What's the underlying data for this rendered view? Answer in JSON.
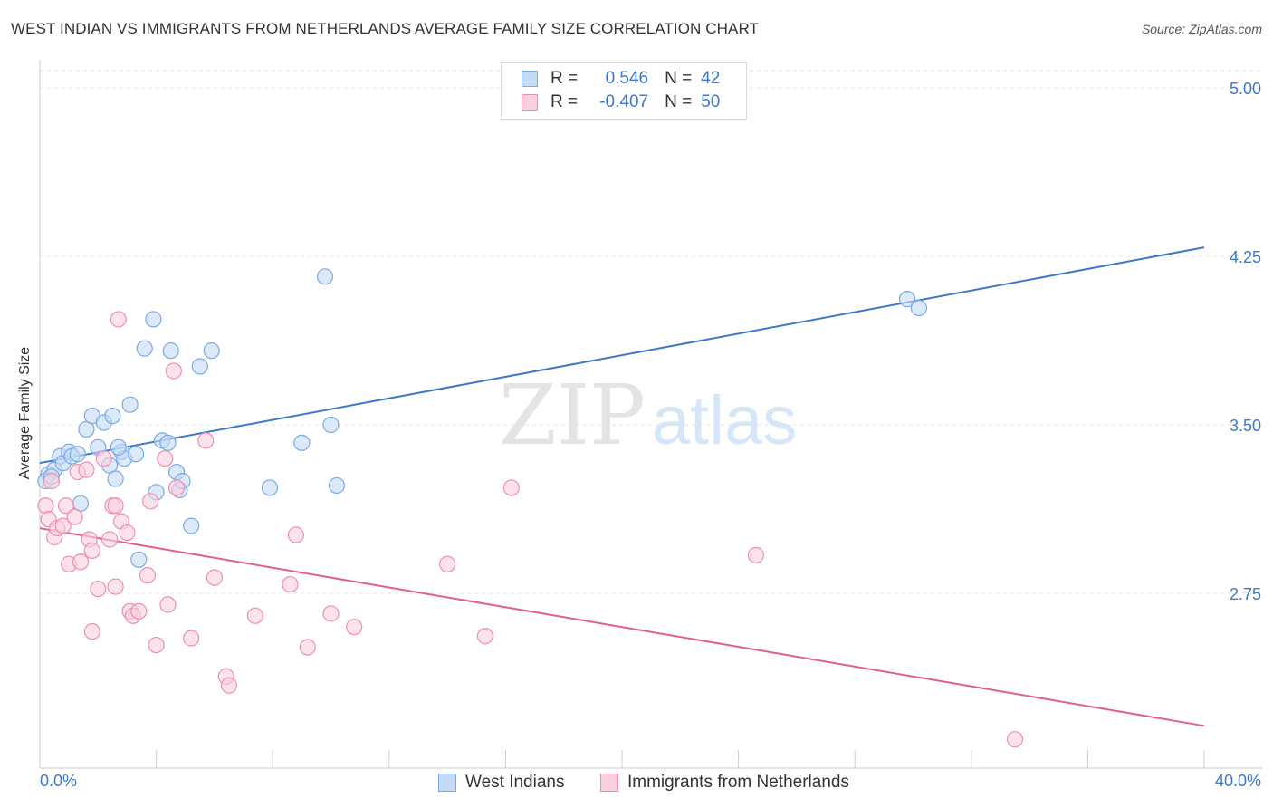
{
  "title": "WEST INDIAN VS IMMIGRANTS FROM NETHERLANDS AVERAGE FAMILY SIZE CORRELATION CHART",
  "source": "Source: ZipAtlas.com",
  "watermark": {
    "zip": "ZIP",
    "atlas": "atlas"
  },
  "legend_stats": [
    {
      "r_label": "R =",
      "r_value": "0.546",
      "n_label": "N =",
      "n_value": "42",
      "color": "#7aaae6",
      "fill": "#c5dbf5"
    },
    {
      "r_label": "R =",
      "r_value": "-0.407",
      "n_label": "N =",
      "n_value": "50",
      "color": "#ee8faf",
      "fill": "#fad0de"
    }
  ],
  "x_axis": {
    "min_label": "0.0%",
    "max_label": "40.0%"
  },
  "chart_data": {
    "type": "scatter",
    "title": "WEST INDIAN VS IMMIGRANTS FROM NETHERLANDS AVERAGE FAMILY SIZE CORRELATION CHART",
    "xlabel": "",
    "ylabel": "Average Family Size",
    "xlim": [
      0,
      40
    ],
    "ylim": [
      2.0,
      5.08
    ],
    "y_ticks": [
      2.75,
      3.5,
      4.25,
      5.0
    ],
    "y_tick_labels": [
      "2.75",
      "3.50",
      "4.25",
      "5.00"
    ],
    "grid": "horizontal dashed",
    "legend_position": "bottom",
    "series": [
      {
        "name": "West Indians",
        "color": "#3c78c8",
        "marker_fill": "#c5dbf5",
        "marker_edge": "#7aaae6",
        "points": [
          [
            0.3,
            3.28
          ],
          [
            0.5,
            3.3
          ],
          [
            0.7,
            3.36
          ],
          [
            0.8,
            3.33
          ],
          [
            1.0,
            3.38
          ],
          [
            1.1,
            3.36
          ],
          [
            1.3,
            3.37
          ],
          [
            1.4,
            3.15
          ],
          [
            1.6,
            3.48
          ],
          [
            1.8,
            3.54
          ],
          [
            2.0,
            3.4
          ],
          [
            2.2,
            3.51
          ],
          [
            2.4,
            3.32
          ],
          [
            2.5,
            3.54
          ],
          [
            2.6,
            3.26
          ],
          [
            2.8,
            3.38
          ],
          [
            2.9,
            3.35
          ],
          [
            3.1,
            3.59
          ],
          [
            3.3,
            3.37
          ],
          [
            3.4,
            2.9
          ],
          [
            3.6,
            3.84
          ],
          [
            3.9,
            3.97
          ],
          [
            4.0,
            3.2
          ],
          [
            4.2,
            3.43
          ],
          [
            4.4,
            3.42
          ],
          [
            4.5,
            3.83
          ],
          [
            4.7,
            3.29
          ],
          [
            4.8,
            3.21
          ],
          [
            4.9,
            3.25
          ],
          [
            5.2,
            3.05
          ],
          [
            5.5,
            3.76
          ],
          [
            5.9,
            3.83
          ],
          [
            7.9,
            3.22
          ],
          [
            9.0,
            3.42
          ],
          [
            9.8,
            4.16
          ],
          [
            10.0,
            3.5
          ],
          [
            10.2,
            3.23
          ],
          [
            29.8,
            4.06
          ],
          [
            30.2,
            4.02
          ],
          [
            0.2,
            3.25
          ],
          [
            0.4,
            3.27
          ],
          [
            2.7,
            3.4
          ]
        ],
        "trendline": {
          "x": [
            0,
            40
          ],
          "y": [
            3.33,
            4.29
          ]
        }
      },
      {
        "name": "Immigrants from Netherlands",
        "color": "#e0608f",
        "marker_fill": "#fad0de",
        "marker_edge": "#ee8faf",
        "points": [
          [
            0.2,
            3.14
          ],
          [
            0.3,
            3.08
          ],
          [
            0.4,
            3.25
          ],
          [
            0.5,
            3.0
          ],
          [
            0.6,
            3.04
          ],
          [
            0.8,
            3.05
          ],
          [
            0.9,
            3.14
          ],
          [
            1.0,
            2.88
          ],
          [
            1.2,
            3.09
          ],
          [
            1.3,
            3.29
          ],
          [
            1.4,
            2.89
          ],
          [
            1.6,
            3.3
          ],
          [
            1.7,
            2.99
          ],
          [
            1.8,
            2.94
          ],
          [
            1.8,
            2.58
          ],
          [
            2.0,
            2.77
          ],
          [
            2.2,
            3.35
          ],
          [
            2.4,
            2.99
          ],
          [
            2.5,
            3.14
          ],
          [
            2.6,
            2.78
          ],
          [
            2.6,
            3.14
          ],
          [
            2.7,
            3.97
          ],
          [
            2.8,
            3.07
          ],
          [
            3.0,
            3.02
          ],
          [
            3.1,
            2.67
          ],
          [
            3.2,
            2.65
          ],
          [
            3.4,
            2.67
          ],
          [
            3.7,
            2.83
          ],
          [
            3.8,
            3.16
          ],
          [
            4.0,
            2.52
          ],
          [
            4.3,
            3.35
          ],
          [
            4.4,
            2.7
          ],
          [
            4.6,
            3.74
          ],
          [
            4.7,
            3.22
          ],
          [
            5.2,
            2.55
          ],
          [
            5.7,
            3.43
          ],
          [
            6.0,
            2.82
          ],
          [
            6.4,
            2.38
          ],
          [
            6.5,
            2.34
          ],
          [
            7.4,
            2.65
          ],
          [
            8.6,
            2.79
          ],
          [
            8.8,
            3.01
          ],
          [
            9.2,
            2.51
          ],
          [
            10.0,
            2.66
          ],
          [
            10.8,
            2.6
          ],
          [
            14.0,
            2.88
          ],
          [
            15.3,
            2.56
          ],
          [
            16.2,
            3.22
          ],
          [
            24.6,
            2.92
          ],
          [
            33.5,
            2.1
          ]
        ],
        "trendline": {
          "x": [
            0,
            40
          ],
          "y": [
            3.04,
            2.16
          ]
        }
      }
    ]
  },
  "bottom_legend": [
    {
      "label": "West Indians",
      "color": "#7aaae6",
      "fill": "#c5dbf5"
    },
    {
      "label": "Immigrants from Netherlands",
      "color": "#ee8faf",
      "fill": "#fad0de"
    }
  ]
}
